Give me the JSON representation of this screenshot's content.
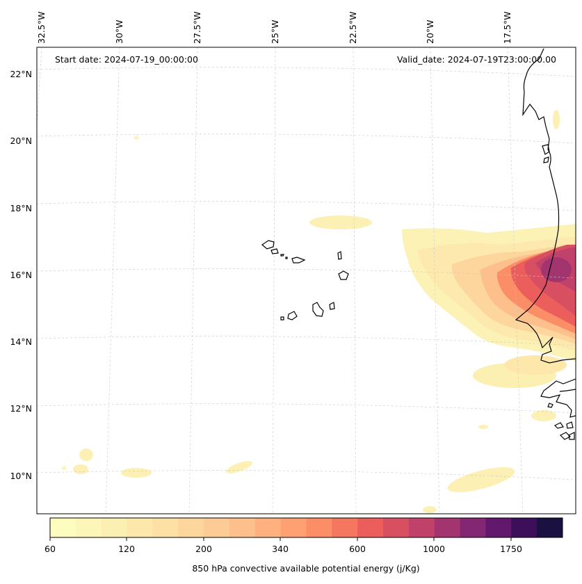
{
  "header": {
    "start_date": "Start date: 2024-07-19_00:00:00",
    "valid_date": "Valid_date: 2024-07-19T23:00:00.00"
  },
  "axes": {
    "lon_labels": [
      "32.5°W",
      "30°W",
      "27.5°W",
      "25°W",
      "22.5°W",
      "20°W",
      "17.5°W"
    ],
    "lat_labels": [
      "22°N",
      "20°N",
      "18°N",
      "16°N",
      "14°N",
      "12°N",
      "10°N"
    ]
  },
  "colorbar": {
    "title": "850 hPa convective available potential energy (j/Kg)",
    "tick_labels": [
      "60",
      "120",
      "200",
      "340",
      "600",
      "1000",
      "1750"
    ],
    "colors": [
      "#fcfdbf",
      "#fcf6b8",
      "#fcefb2",
      "#fde7ab",
      "#fde0a4",
      "#fdd69d",
      "#fdcb95",
      "#fdbf8c",
      "#feb17f",
      "#fea072",
      "#fb8d67",
      "#f6775f",
      "#ec5e5b",
      "#d84f62",
      "#c0426b",
      "#a23470",
      "#832772",
      "#61186d",
      "#3d0f5a",
      "#1a1140"
    ]
  },
  "map": {
    "projection": "Lambert conformal",
    "gridlines": true,
    "coastline_color": "#000000",
    "ocean_color": "#ffffff"
  }
}
